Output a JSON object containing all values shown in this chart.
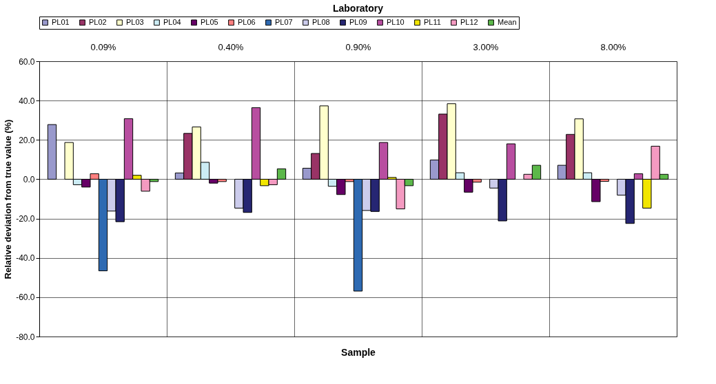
{
  "chart_data": {
    "type": "bar",
    "title": "Laboratory",
    "xlabel": "Sample",
    "ylabel": "Relative deviation from true value (%)",
    "categories": [
      "0.09%",
      "0.40%",
      "0.90%",
      "3.00%",
      "8.00%"
    ],
    "series": [
      {
        "name": "PL01",
        "color": "#9999cc",
        "values": [
          27.8,
          3.2,
          5.6,
          9.8,
          7.1
        ]
      },
      {
        "name": "PL02",
        "color": "#993366",
        "values": [
          null,
          23.3,
          13.1,
          33.1,
          22.8
        ]
      },
      {
        "name": "PL03",
        "color": "#ffffcc",
        "values": [
          18.7,
          26.6,
          37.3,
          38.4,
          30.7
        ]
      },
      {
        "name": "PL04",
        "color": "#ccecf4",
        "values": [
          -2.8,
          8.6,
          -3.6,
          3.3,
          3.3
        ]
      },
      {
        "name": "PL05",
        "color": "#660066",
        "values": [
          -4.0,
          -2.0,
          -7.8,
          -6.6,
          -11.4
        ]
      },
      {
        "name": "PL06",
        "color": "#ff8080",
        "values": [
          2.8,
          -1.2,
          -1.2,
          -1.5,
          -1.1
        ]
      },
      {
        "name": "PL07",
        "color": "#2e6ab2",
        "values": [
          -46.6,
          null,
          -56.9,
          null,
          null
        ]
      },
      {
        "name": "PL08",
        "color": "#ccccec",
        "values": [
          -16.2,
          -14.7,
          -15.9,
          -4.5,
          -8.1
        ]
      },
      {
        "name": "PL09",
        "color": "#262673",
        "values": [
          -21.6,
          -16.9,
          -16.4,
          -21.2,
          -22.5
        ]
      },
      {
        "name": "PL10",
        "color": "#b84ea0",
        "values": [
          30.8,
          36.4,
          18.7,
          18.0,
          2.8
        ]
      },
      {
        "name": "PL11",
        "color": "#f2e600",
        "values": [
          2.0,
          -3.3,
          0.9,
          null,
          -14.7
        ]
      },
      {
        "name": "PL12",
        "color": "#f49ac1",
        "values": [
          -6.1,
          -2.8,
          -15.1,
          2.5,
          16.8
        ]
      },
      {
        "name": "Mean",
        "color": "#5cb84a",
        "values": [
          -1.2,
          5.3,
          -3.3,
          7.1,
          2.5
        ]
      }
    ],
    "ylim": [
      -80,
      60
    ],
    "yticks": [
      {
        "value": -80,
        "label": "-80.0"
      },
      {
        "value": -60,
        "label": "-60.0"
      },
      {
        "value": -40,
        "label": "-40.0"
      },
      {
        "value": -20,
        "label": "-20.0"
      },
      {
        "value": 0,
        "label": "0.0"
      },
      {
        "value": 20,
        "label": "20.0"
      },
      {
        "value": 40,
        "label": "40.0"
      },
      {
        "value": 60,
        "label": "60.0"
      }
    ],
    "grid": true,
    "legend": "top"
  }
}
